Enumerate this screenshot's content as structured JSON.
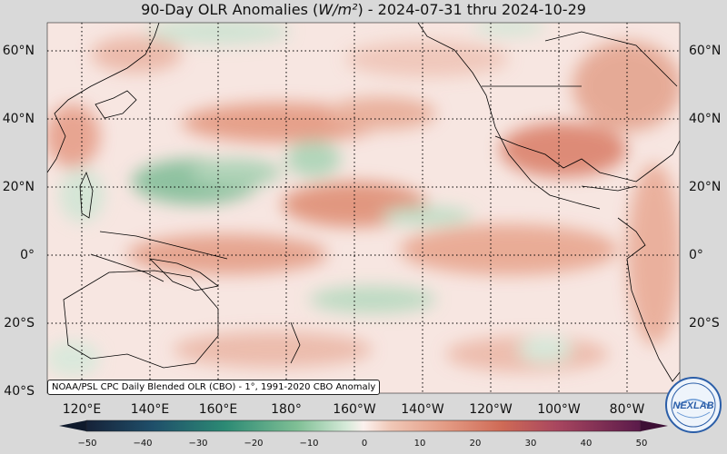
{
  "title": {
    "prefix": "90-Day OLR Anomalies (",
    "unit": "W/m²",
    "suffix": ") - 2024-07-31 thru 2024-10-29"
  },
  "lat_labels": [
    "60°N",
    "40°N",
    "20°N",
    "0°",
    "20°S",
    "40°S"
  ],
  "lon_labels": [
    "120°E",
    "140°E",
    "160°E",
    "180°",
    "160°W",
    "140°W",
    "120°W",
    "100°W",
    "80°W"
  ],
  "source_note": "NOAA/PSL CPC Daily Blended OLR (CBO) - 1°, 1991-2020 CBO Anomaly",
  "colorbar": {
    "ticks": [
      "−50",
      "−40",
      "−30",
      "−20",
      "−10",
      "0",
      "10",
      "20",
      "30",
      "40",
      "50"
    ],
    "range": [
      -50,
      50
    ],
    "negative_color": "#2e8b57",
    "positive_color": "#d9735a"
  },
  "logo": {
    "text": "NEXLAB"
  }
}
